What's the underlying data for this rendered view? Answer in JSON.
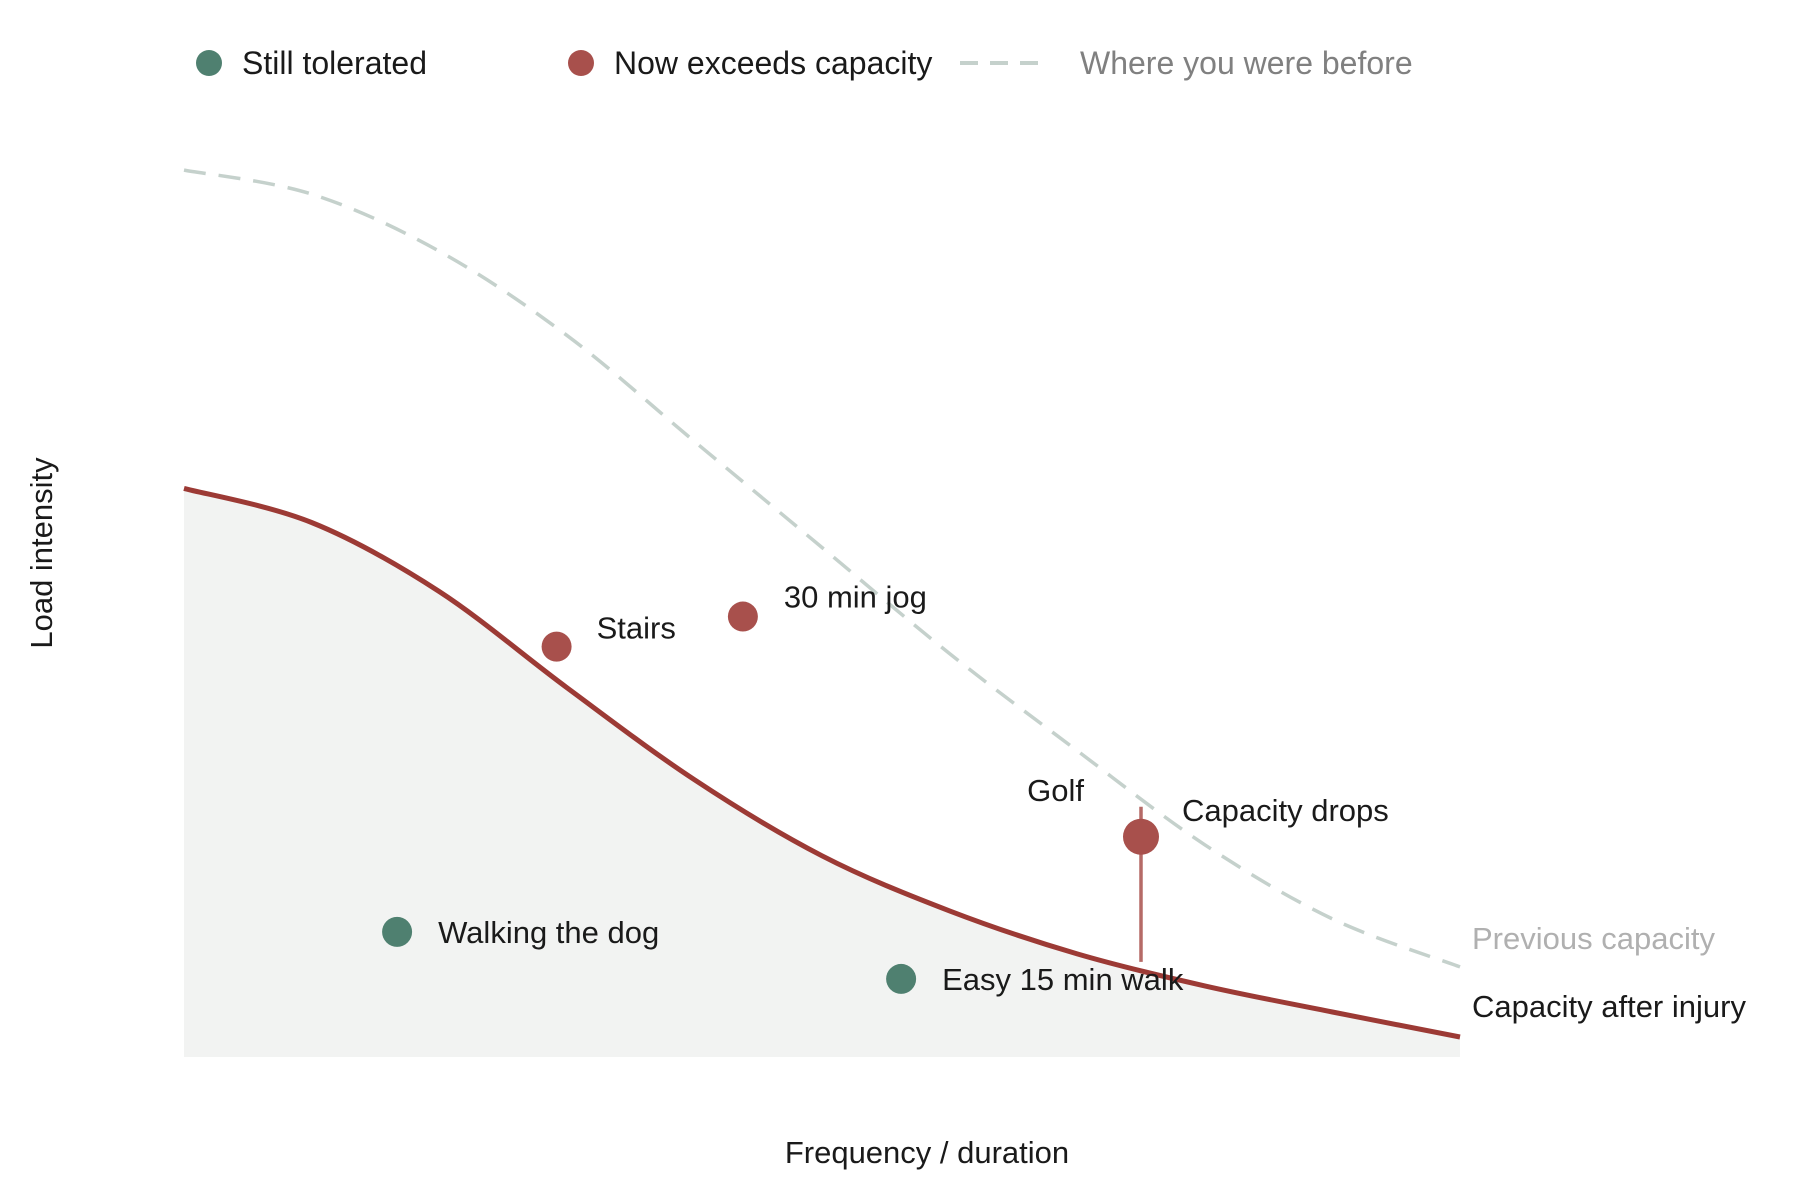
{
  "colors": {
    "tolerated": "#4f8070",
    "exceeds": "#a8504c",
    "capacity_line": "#9c3a35",
    "previous_line": "#c5d1cc",
    "fill": "#f2f3f2",
    "text": "#1a1a1a",
    "muted_text": "#808080",
    "light_text": "#b0b0b0"
  },
  "legend": {
    "tolerated": "Still tolerated",
    "exceeds": "Now exceeds capacity",
    "previous": "Where you were before"
  },
  "chart_data": {
    "type": "scatter",
    "xlabel": "Frequency / duration",
    "ylabel": "Load intensity",
    "xlim": [
      0,
      100
    ],
    "ylim": [
      0,
      100
    ],
    "grid": false,
    "legend_position": "top",
    "curves": [
      {
        "name": "Capacity after injury",
        "style": "solid",
        "points": [
          [
            0,
            56.8
          ],
          [
            10,
            53.4
          ],
          [
            20,
            46.5
          ],
          [
            30,
            36.9
          ],
          [
            40,
            27.7
          ],
          [
            50,
            20.1
          ],
          [
            60,
            14.6
          ],
          [
            70,
            10.3
          ],
          [
            80,
            7.1
          ],
          [
            90,
            4.5
          ],
          [
            100,
            2.0
          ]
        ]
      },
      {
        "name": "Previous capacity",
        "style": "dashed",
        "points": [
          [
            0,
            88.6
          ],
          [
            10,
            86.2
          ],
          [
            20,
            80.5
          ],
          [
            30,
            72.1
          ],
          [
            40,
            61.5
          ],
          [
            50,
            50.9
          ],
          [
            60,
            40.3
          ],
          [
            70,
            30.6
          ],
          [
            80,
            21.2
          ],
          [
            90,
            13.8
          ],
          [
            100,
            9.0
          ]
        ]
      }
    ],
    "points": [
      {
        "label": "Walking the dog",
        "x": 16.7,
        "y": 12.5,
        "status": "tolerated"
      },
      {
        "label": "Easy 15 min walk",
        "x": 56.2,
        "y": 7.8,
        "status": "tolerated"
      },
      {
        "label": "Stairs",
        "x": 29.2,
        "y": 41.0,
        "status": "exceeds"
      },
      {
        "label": "30 min jog",
        "x": 43.8,
        "y": 44.0,
        "status": "exceeds"
      },
      {
        "label": "Golf",
        "x": 75.0,
        "y": 22.0,
        "status": "exceeds"
      }
    ],
    "annotations": {
      "drop": "Capacity drops"
    }
  }
}
